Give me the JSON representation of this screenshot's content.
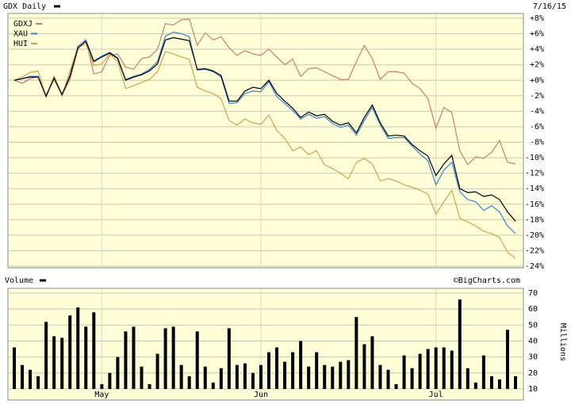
{
  "chart_data": [
    {
      "type": "line",
      "title": "GDX Daily",
      "date": "7/16/15",
      "color": "#000000",
      "values": [
        0,
        0.2,
        0.4,
        0.4,
        -2.1,
        0.3,
        -1.9,
        0.5,
        4.2,
        5,
        2.4,
        3,
        3.5,
        2.8,
        0,
        0.4,
        0.7,
        1.2,
        2.1,
        5.2,
        5.5,
        5.3,
        5.1,
        1.4,
        1.5,
        1.2,
        0.6,
        -2.7,
        -2.7,
        -1.4,
        -0.9,
        -1.1,
        0,
        -1.7,
        -2.7,
        -3.6,
        -4.8,
        -4.1,
        -4.6,
        -4.4,
        -5.3,
        -5.8,
        -5.5,
        -6.8,
        -4.8,
        -3.2,
        -5.5,
        -7.2,
        -7.1,
        -7.2,
        -8.3,
        -9.1,
        -9.8,
        -12.3,
        -10.8,
        -9.7,
        -14,
        -14.5,
        -14.4,
        -15,
        -14.8,
        -15.4,
        -17,
        -18.2
      ],
      "series": [
        {
          "name": "GDXJ",
          "color": "#d07a70",
          "values": [
            0,
            -0.4,
            0.2,
            0.5,
            -1.9,
            0.1,
            -1.9,
            0.1,
            4,
            5.2,
            0.8,
            1.1,
            3.2,
            3.4,
            1.7,
            1.4,
            2.8,
            3,
            4,
            7.3,
            7.1,
            7.8,
            7.9,
            4.5,
            6.1,
            5.2,
            5.6,
            4.2,
            3.2,
            3.8,
            3.4,
            3.2,
            4,
            3,
            2,
            2.7,
            0.5,
            1.5,
            1.6,
            1.1,
            0.6,
            0.1,
            0.1,
            2.4,
            4.5,
            2.8,
            0.1,
            1.1,
            1.1,
            0.9,
            -0.4,
            -1.1,
            -2.4,
            -6.2,
            -3.5,
            -4.2,
            -9.1,
            -10.9,
            -9.9,
            -10.1,
            -9.3,
            -7.8,
            -10.6,
            -10.8
          ]
        },
        {
          "name": "XAU",
          "color": "#3a80d8",
          "values": [
            0,
            0.2,
            0.5,
            0.5,
            -2,
            0.4,
            -1.8,
            0.6,
            4.4,
            5.2,
            2.5,
            3.1,
            3.6,
            2.9,
            0.1,
            0.5,
            0.8,
            1.4,
            2.4,
            5.7,
            6.2,
            6,
            5.6,
            1.3,
            1.4,
            1.1,
            0.4,
            -3,
            -2.9,
            -1.7,
            -1.4,
            -1.5,
            -0.2,
            -2.1,
            -3,
            -3.9,
            -5,
            -4.4,
            -4.9,
            -4.7,
            -5.6,
            -6.1,
            -5.8,
            -7.1,
            -5.2,
            -3.5,
            -5.8,
            -7.5,
            -7.4,
            -7.4,
            -8.5,
            -9.5,
            -10.4,
            -13.5,
            -11.6,
            -10.6,
            -14.4,
            -15.4,
            -15.7,
            -16.8,
            -16.2,
            -17,
            -18.8,
            -19.8
          ]
        },
        {
          "name": "HUI",
          "color": "#d4a050",
          "values": [
            0,
            0.4,
            1,
            1.2,
            -2.1,
            0.5,
            -2,
            1.2,
            4.2,
            4.7,
            1.9,
            2.1,
            3.4,
            2.4,
            -1.1,
            -0.7,
            -0.3,
            0.1,
            1.1,
            3.7,
            3.4,
            3,
            2.7,
            -0.9,
            -1.4,
            -1.7,
            -2.4,
            -5.2,
            -5.8,
            -5,
            -5.5,
            -5.7,
            -4.5,
            -6.5,
            -7.5,
            -9.1,
            -8.6,
            -9.6,
            -9.1,
            -10.9,
            -11.4,
            -12,
            -12.7,
            -10.6,
            -10.1,
            -10.8,
            -13,
            -12.7,
            -13,
            -13.5,
            -13.8,
            -14.2,
            -14.7,
            -17.3,
            -15.7,
            -14.2,
            -17.8,
            -18.3,
            -18.8,
            -19.5,
            -19.8,
            -20.3,
            -22.2,
            -23
          ]
        }
      ],
      "ylim": [
        -24,
        8
      ],
      "yticks": [
        {
          "value": 8,
          "label": "+8%"
        },
        {
          "value": 6,
          "label": "+6%"
        },
        {
          "value": 4,
          "label": "+4%"
        },
        {
          "value": 2,
          "label": "+2%"
        },
        {
          "value": 0,
          "label": "+0%"
        },
        {
          "value": -2,
          "label": "-2%"
        },
        {
          "value": -4,
          "label": "-4%"
        },
        {
          "value": -6,
          "label": "-6%"
        },
        {
          "value": -8,
          "label": "-8%"
        },
        {
          "value": -10,
          "label": "-10%"
        },
        {
          "value": -12,
          "label": "-12%"
        },
        {
          "value": -14,
          "label": "-14%"
        },
        {
          "value": -16,
          "label": "-16%"
        },
        {
          "value": -18,
          "label": "-18%"
        },
        {
          "value": -20,
          "label": "-20%"
        },
        {
          "value": -22,
          "label": "-22%"
        },
        {
          "value": -24,
          "label": "-24%"
        }
      ],
      "grid": true
    },
    {
      "type": "bar",
      "title": "Volume",
      "credit": "©BigCharts.com",
      "ylabel": "Millions",
      "color": "#000000",
      "categories": [
        null,
        null,
        null,
        null,
        null,
        null,
        null,
        null,
        null,
        null,
        null,
        "May",
        null,
        null,
        null,
        null,
        null,
        null,
        null,
        null,
        null,
        null,
        null,
        null,
        null,
        null,
        null,
        null,
        null,
        null,
        null,
        "Jun",
        null,
        null,
        null,
        null,
        null,
        null,
        null,
        null,
        null,
        null,
        null,
        null,
        null,
        null,
        null,
        null,
        null,
        null,
        null,
        null,
        null,
        "Jul",
        null,
        null,
        null,
        null,
        null,
        null,
        null,
        null,
        null,
        null
      ],
      "values": [
        36,
        25,
        22,
        18,
        52,
        43,
        42,
        56,
        61,
        49,
        58,
        13,
        20,
        30,
        46,
        49,
        24,
        13,
        32,
        48,
        49,
        25,
        18,
        46,
        24,
        14,
        23,
        48,
        25,
        26,
        20,
        25,
        33,
        36,
        27,
        33,
        40,
        24,
        33,
        25,
        24,
        27,
        28,
        55,
        38,
        43,
        25,
        22,
        13,
        31,
        23,
        32,
        35,
        36,
        36,
        34,
        66,
        23,
        14,
        31,
        18,
        16,
        47,
        18
      ],
      "ylim": [
        10,
        70
      ],
      "yticks": [
        10,
        20,
        30,
        40,
        50,
        60,
        70
      ],
      "grid": true
    }
  ]
}
